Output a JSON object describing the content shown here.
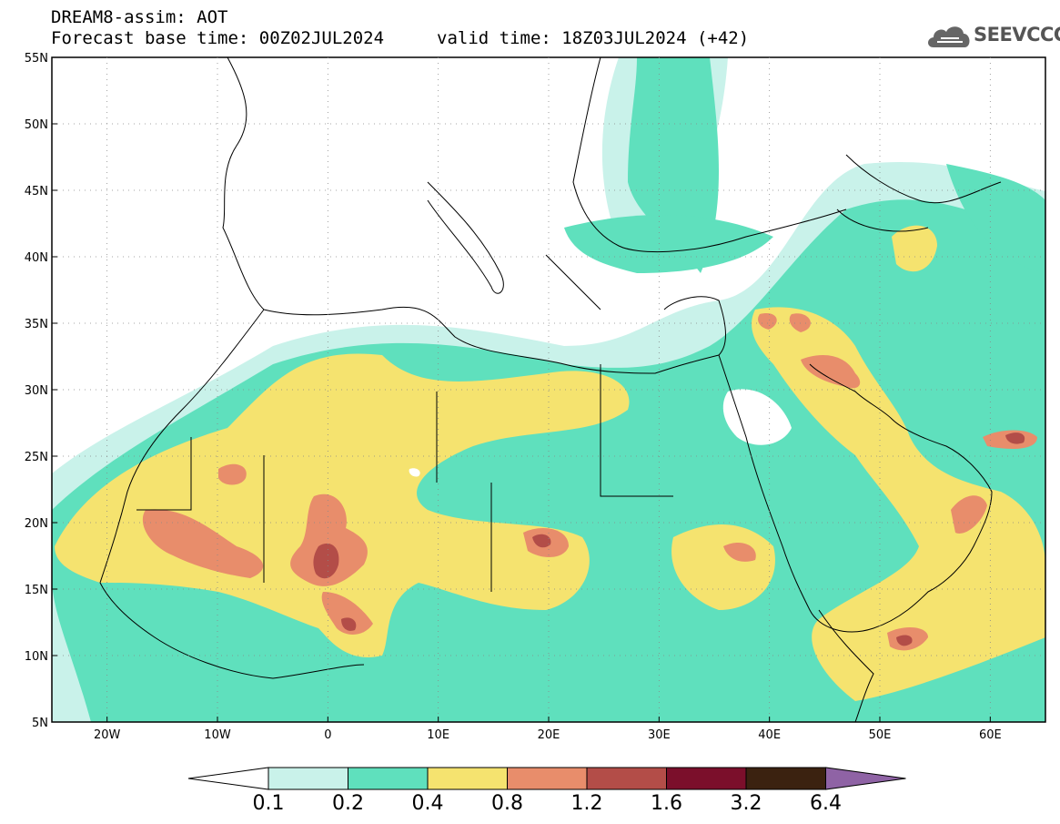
{
  "header": {
    "line1": "DREAM8-assim: AOT",
    "line2": "Forecast base time: 00Z02JUL2024",
    "line3": "valid time: 18Z03JUL2024 (+42)"
  },
  "logo": {
    "text": "SEEVCCC",
    "icon": "cloud-icon"
  },
  "map": {
    "lon_range": [
      -25,
      65
    ],
    "lat_range": [
      5,
      55
    ],
    "lon_ticks": [
      "20W",
      "10W",
      "0",
      "10E",
      "20E",
      "30E",
      "40E",
      "50E",
      "60E"
    ],
    "lat_ticks": [
      "55N",
      "50N",
      "45N",
      "40N",
      "35N",
      "30N",
      "25N",
      "20N",
      "15N",
      "10N",
      "5N"
    ],
    "grid": "dotted"
  },
  "colorbar": {
    "labels": [
      "0.1",
      "0.2",
      "0.4",
      "0.8",
      "1.2",
      "1.6",
      "3.2",
      "6.4"
    ],
    "colors": [
      "#c9f2ea",
      "#5fe0bd",
      "#f5e36f",
      "#e88d6b",
      "#b34d48",
      "#7b0f2b",
      "#3b2210",
      "#8f63a5"
    ],
    "under_color": "#ffffff"
  }
}
